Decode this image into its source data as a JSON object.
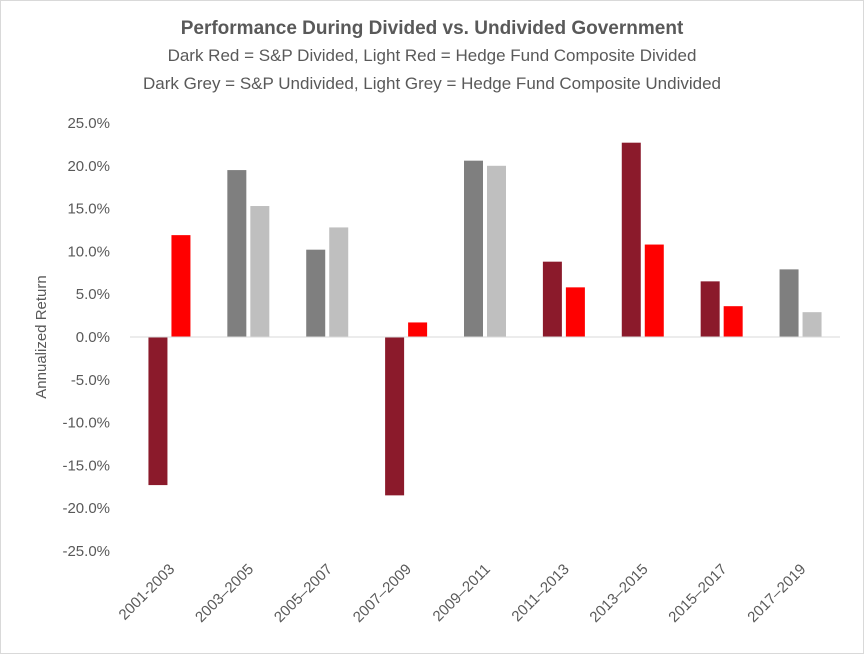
{
  "chart_data": {
    "type": "bar",
    "title": "Performance During Divided vs. Undivided Government",
    "subtitle_lines": [
      "Dark Red = S&P Divided, Light Red = Hedge Fund Composite Divided",
      "Dark Grey = S&P Undivided, Light Grey = Hedge Fund Composite Undivided"
    ],
    "xlabel": "",
    "ylabel": "Annualized Return",
    "ylim": [
      -25,
      25
    ],
    "yticks": [
      25,
      20,
      15,
      10,
      5,
      0,
      -5,
      -10,
      -15,
      -20,
      -25
    ],
    "ytick_labels": [
      "25.0%",
      "20.0%",
      "15.0%",
      "10.0%",
      "5.0%",
      "0.0%",
      "-5.0%",
      "-10.0%",
      "-15.0%",
      "-20.0%",
      "-25.0%"
    ],
    "grid": false,
    "legend": "none",
    "categories": [
      "2001-2003",
      "2003–2005",
      "2005–2007",
      "2007–2009",
      "2009–2011",
      "2011–2013",
      "2013–2015",
      "2015–2017",
      "2017–2019"
    ],
    "government": [
      "divided",
      "undivided",
      "undivided",
      "divided",
      "undivided",
      "divided",
      "divided",
      "divided",
      "undivided"
    ],
    "series": [
      {
        "name": "S&P",
        "values": [
          -17.3,
          19.5,
          10.2,
          -18.5,
          20.6,
          8.8,
          22.7,
          6.5,
          7.9
        ]
      },
      {
        "name": "Hedge Fund Composite",
        "values": [
          11.9,
          15.3,
          12.8,
          1.7,
          20.0,
          5.8,
          10.8,
          3.6,
          2.9
        ]
      }
    ],
    "colors": {
      "sp_divided": "#8b1a2b",
      "hf_divided": "#ff0000",
      "sp_undivided": "#7f7f7f",
      "hf_undivided": "#bfbfbf",
      "axis": "#d9d9d9"
    }
  }
}
